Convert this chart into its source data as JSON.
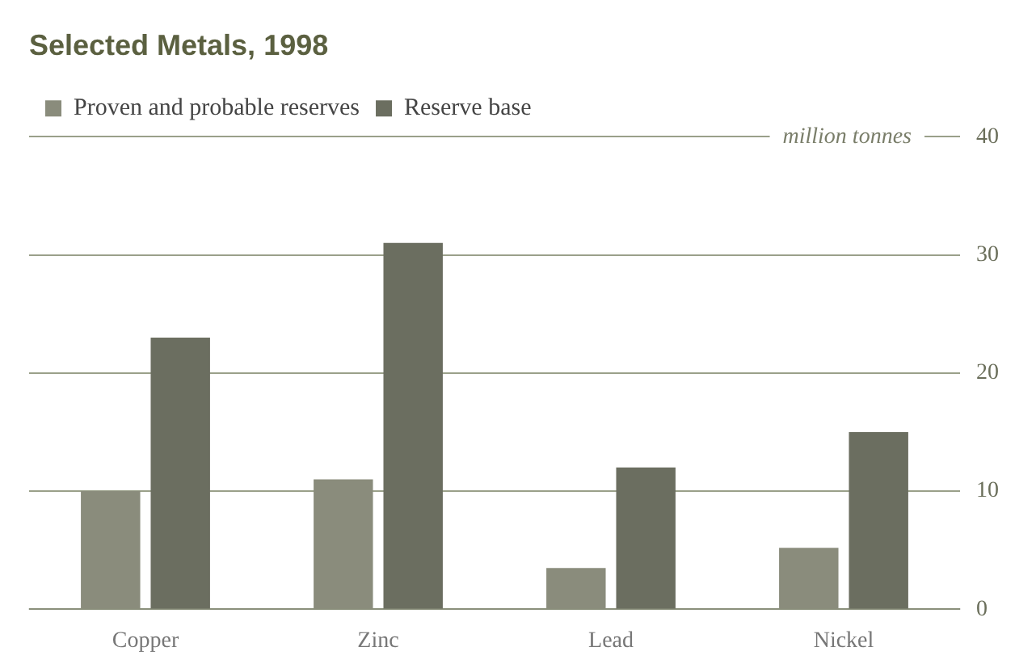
{
  "chart_data": {
    "type": "bar",
    "title": "Selected Metals, 1998",
    "ylabel": "million tonnes",
    "categories": [
      "Copper",
      "Zinc",
      "Lead",
      "Nickel"
    ],
    "series": [
      {
        "name": "Proven and probable reserves",
        "color": "#8a8c7c",
        "values": [
          10,
          11,
          3.5,
          5.2
        ]
      },
      {
        "name": "Reserve base",
        "color": "#6b6e60",
        "values": [
          23,
          31,
          12,
          15
        ]
      }
    ],
    "ylim": [
      0,
      40
    ],
    "yticks": [
      0,
      10,
      20,
      30,
      40
    ],
    "grid": "y",
    "legend": "top left"
  }
}
